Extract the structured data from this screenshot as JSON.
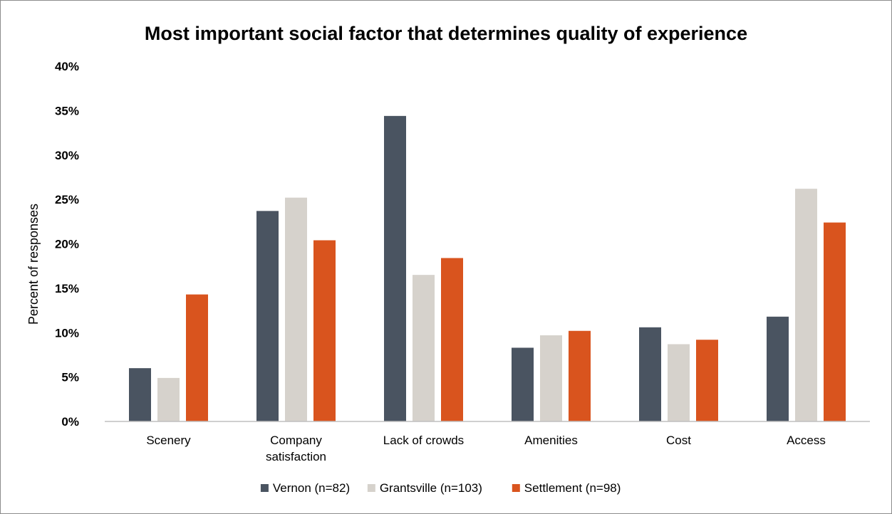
{
  "chart_data": {
    "type": "bar",
    "title": "Most important social factor that determines quality of experience",
    "xlabel": "",
    "ylabel": "Percent of responses",
    "ylim": [
      0,
      40
    ],
    "y_tick_labels": [
      "0%",
      "5%",
      "10%",
      "15%",
      "20%",
      "25%",
      "30%",
      "35%",
      "40%"
    ],
    "categories": [
      [
        "Scenery"
      ],
      [
        "Company",
        "satisfaction"
      ],
      [
        "Lack of crowds"
      ],
      [
        "Amenities"
      ],
      [
        "Cost"
      ],
      [
        "Access"
      ]
    ],
    "series": [
      {
        "name": "Vernon (n=82)",
        "color": "#4a5461",
        "values": [
          6.0,
          23.7,
          34.4,
          8.3,
          10.6,
          11.8
        ]
      },
      {
        "name": "Grantsville (n=103)",
        "color": "#d6d2cc",
        "values": [
          4.9,
          25.2,
          16.5,
          9.7,
          8.7,
          26.2
        ]
      },
      {
        "name": "Settlement (n=98)",
        "color": "#d9541e",
        "values": [
          14.3,
          20.4,
          18.4,
          10.2,
          9.2,
          22.4
        ]
      }
    ],
    "grid": false,
    "legend_position": "bottom"
  }
}
